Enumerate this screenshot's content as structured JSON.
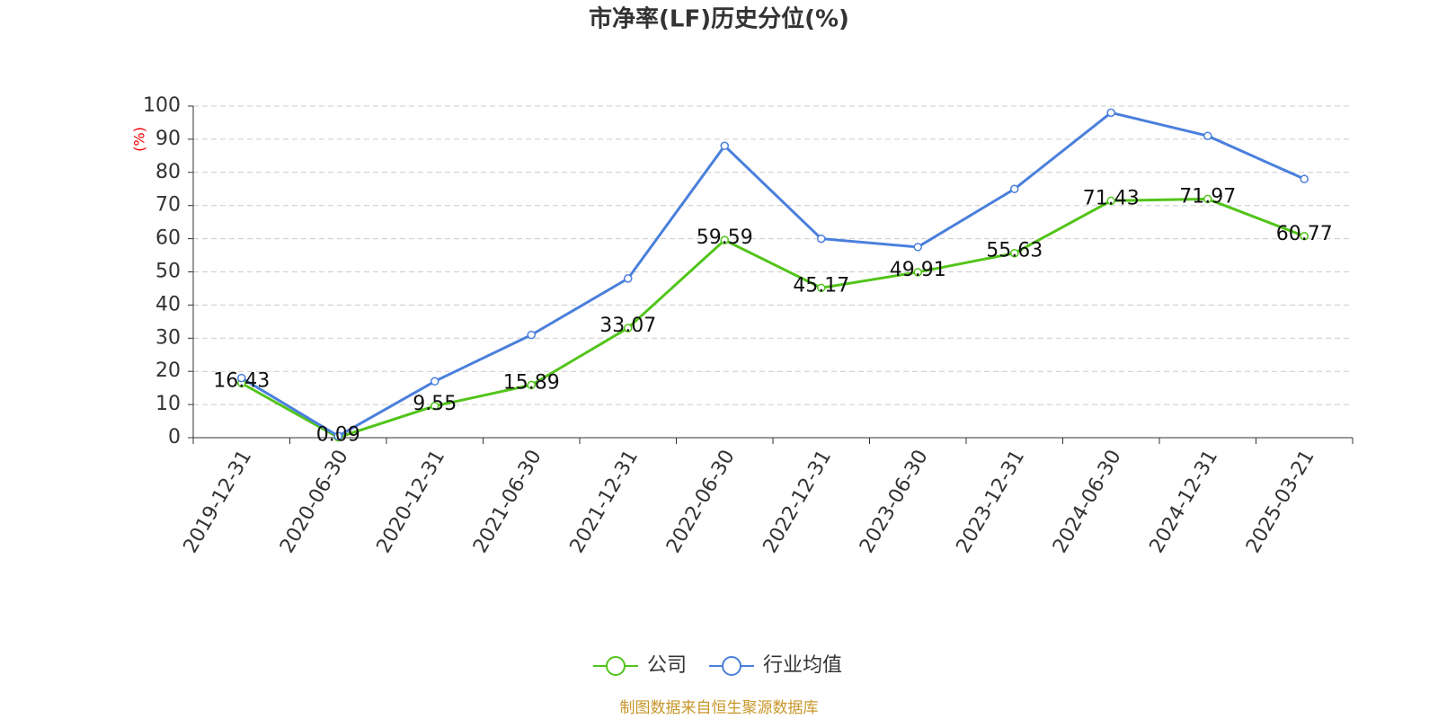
{
  "chart_data": {
    "type": "line",
    "title": "市净率(LF)历史分位(%)",
    "y_label": "(%)",
    "categories": [
      "2019-12-31",
      "2020-06-30",
      "2020-12-31",
      "2021-06-30",
      "2021-12-31",
      "2022-06-30",
      "2022-12-31",
      "2023-06-30",
      "2023-12-31",
      "2024-06-30",
      "2024-12-31",
      "2025-03-21"
    ],
    "series": [
      {
        "name": "公司",
        "color": "#52c41a",
        "values": [
          16.43,
          0.09,
          9.55,
          15.89,
          33.07,
          59.59,
          45.17,
          49.91,
          55.63,
          71.43,
          71.97,
          60.77
        ],
        "show_labels": true
      },
      {
        "name": "行业均值",
        "color": "#4a7fdc",
        "values": [
          18,
          0.5,
          17,
          31,
          48,
          88,
          60,
          57.5,
          75,
          98,
          91,
          78
        ],
        "show_labels": false
      }
    ],
    "ylim": [
      0,
      100
    ],
    "yticks": [
      0,
      10,
      20,
      30,
      40,
      50,
      60,
      70,
      80,
      90,
      100
    ],
    "grid": true,
    "legend": "bottom",
    "source": "制图数据来自恒生聚源数据库"
  }
}
